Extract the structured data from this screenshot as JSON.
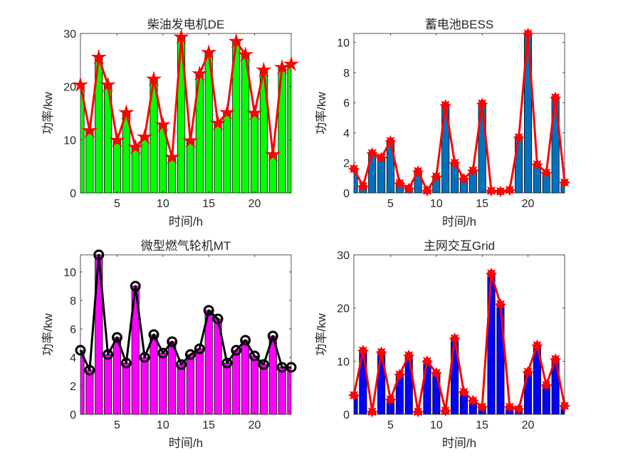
{
  "chart_data": [
    {
      "type": "bar",
      "title": "柴油发电机DE",
      "xlabel": "时间/h",
      "ylabel": "功率/kw",
      "xlim": [
        1,
        24
      ],
      "ylim": [
        0,
        30
      ],
      "xticks": [
        5,
        10,
        15,
        20
      ],
      "yticks": [
        0,
        10,
        20,
        30
      ],
      "bar_color": "#00ff00",
      "line_color": "#ff0000",
      "line_edge": "#ff0000",
      "marker": "star",
      "x": [
        1,
        2,
        3,
        4,
        5,
        6,
        7,
        8,
        9,
        10,
        11,
        12,
        13,
        14,
        15,
        16,
        17,
        18,
        19,
        20,
        21,
        22,
        23,
        24
      ],
      "values": [
        20.3,
        11.7,
        25.5,
        20.3,
        9.9,
        15.1,
        8.6,
        10.5,
        21.4,
        12.8,
        6.7,
        29.3,
        9.8,
        22.4,
        26.4,
        13.1,
        15.1,
        28.5,
        26.0,
        15.0,
        23.1,
        7.2,
        23.6,
        24.2
      ]
    },
    {
      "type": "bar",
      "title": "蓄电池BESS",
      "xlabel": "时间/h",
      "ylabel": "功率/kw",
      "xlim": [
        1,
        24
      ],
      "ylim": [
        0,
        10.6
      ],
      "xticks": [
        5,
        10,
        15,
        20
      ],
      "yticks": [
        0,
        2,
        4,
        6,
        8,
        10
      ],
      "bar_color": "#0072bd",
      "line_color": "#ff0000",
      "marker": "asterisk",
      "x": [
        1,
        2,
        3,
        4,
        5,
        6,
        7,
        8,
        9,
        10,
        11,
        12,
        13,
        14,
        15,
        16,
        17,
        18,
        19,
        20,
        21,
        22,
        23,
        24
      ],
      "values": [
        1.6,
        0.45,
        2.65,
        2.35,
        3.45,
        0.65,
        0.3,
        1.45,
        0.15,
        1.1,
        5.85,
        2.0,
        0.95,
        1.5,
        5.95,
        0.15,
        0.1,
        0.2,
        3.7,
        10.6,
        1.9,
        1.35,
        6.35,
        0.7
      ]
    },
    {
      "type": "bar",
      "title": "微型燃气轮机MT",
      "xlabel": "时间/h",
      "ylabel": "功率/kw",
      "xlim": [
        1,
        24
      ],
      "ylim": [
        0,
        11.2
      ],
      "xticks": [
        5,
        10,
        15,
        20
      ],
      "yticks": [
        0,
        2,
        4,
        6,
        8,
        10
      ],
      "bar_color": "#ff00ff",
      "line_color": "#000000",
      "marker": "circle",
      "x": [
        1,
        2,
        3,
        4,
        5,
        6,
        7,
        8,
        9,
        10,
        11,
        12,
        13,
        14,
        15,
        16,
        17,
        18,
        19,
        20,
        21,
        22,
        23,
        24
      ],
      "values": [
        4.5,
        3.1,
        11.2,
        4.2,
        5.4,
        3.6,
        9.0,
        4.0,
        5.6,
        4.3,
        5.1,
        3.5,
        4.2,
        4.6,
        7.3,
        6.7,
        3.6,
        4.5,
        5.2,
        4.1,
        3.5,
        5.5,
        3.3,
        3.3
      ]
    },
    {
      "type": "bar",
      "title": "主网交互Grid",
      "xlabel": "时间/h",
      "ylabel": "功率/kw",
      "xlim": [
        1,
        24
      ],
      "ylim": [
        0,
        30
      ],
      "xticks": [
        5,
        10,
        15,
        20
      ],
      "yticks": [
        0,
        10,
        20,
        30
      ],
      "bar_color": "#0000ff",
      "line_color": "#ff0000",
      "marker": "asterisk",
      "x": [
        1,
        2,
        3,
        4,
        5,
        6,
        7,
        8,
        9,
        10,
        11,
        12,
        13,
        14,
        15,
        16,
        17,
        18,
        19,
        20,
        21,
        22,
        23,
        24
      ],
      "values": [
        3.6,
        12.0,
        0.5,
        11.7,
        2.8,
        7.5,
        11.1,
        0.5,
        10.0,
        7.8,
        0.7,
        14.3,
        4.2,
        2.6,
        1.4,
        26.5,
        20.7,
        1.4,
        1.0,
        8.0,
        13.0,
        5.5,
        10.4,
        1.6
      ]
    }
  ]
}
